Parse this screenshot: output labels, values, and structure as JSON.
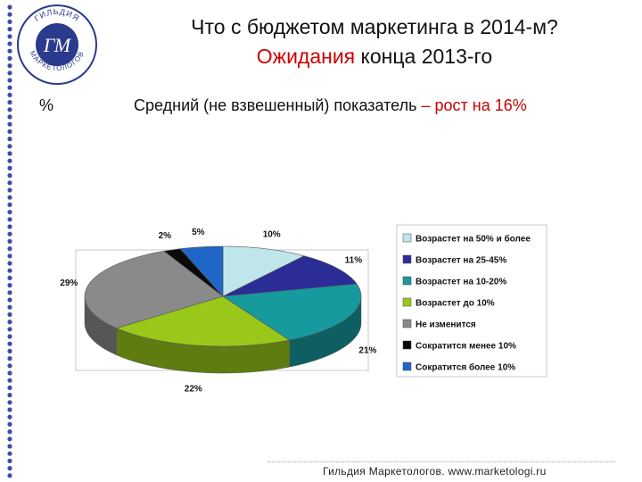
{
  "header": {
    "title_line1": "Что с бюджетом маркетинга в 2014-м?",
    "title_accent": "Ожидания",
    "title_rest": " конца 2013-го"
  },
  "unit_label": "%",
  "subtitle": {
    "text": "Средний (не взвешенный) показатель",
    "accent": " – рост на 16%"
  },
  "logo": {
    "arc_text": "ГИЛЬДИЯ МАРКЕТОЛОГОВ",
    "monogram": "ГМ"
  },
  "footer": "Гильдия Маркетологов. www.marketologi.ru",
  "chart_data": {
    "type": "pie",
    "title": "",
    "categories": [
      "Возрастет на 50% и более",
      "Возрастет на 25-45%",
      "Возрастет на 10-20%",
      "Возрастет до 10%",
      "Не изменится",
      "Сократится менее 10%",
      "Сократится более 10%"
    ],
    "values": [
      10,
      11,
      21,
      22,
      29,
      2,
      5
    ],
    "labels": [
      "10%",
      "11%",
      "21%",
      "22%",
      "29%",
      "2%",
      "5%"
    ],
    "colors": [
      "#bfe6ea",
      "#2b2c96",
      "#169a9d",
      "#99c81a",
      "#8a8a8a",
      "#0a0a0a",
      "#1f66c8"
    ],
    "legend_position": "right"
  }
}
